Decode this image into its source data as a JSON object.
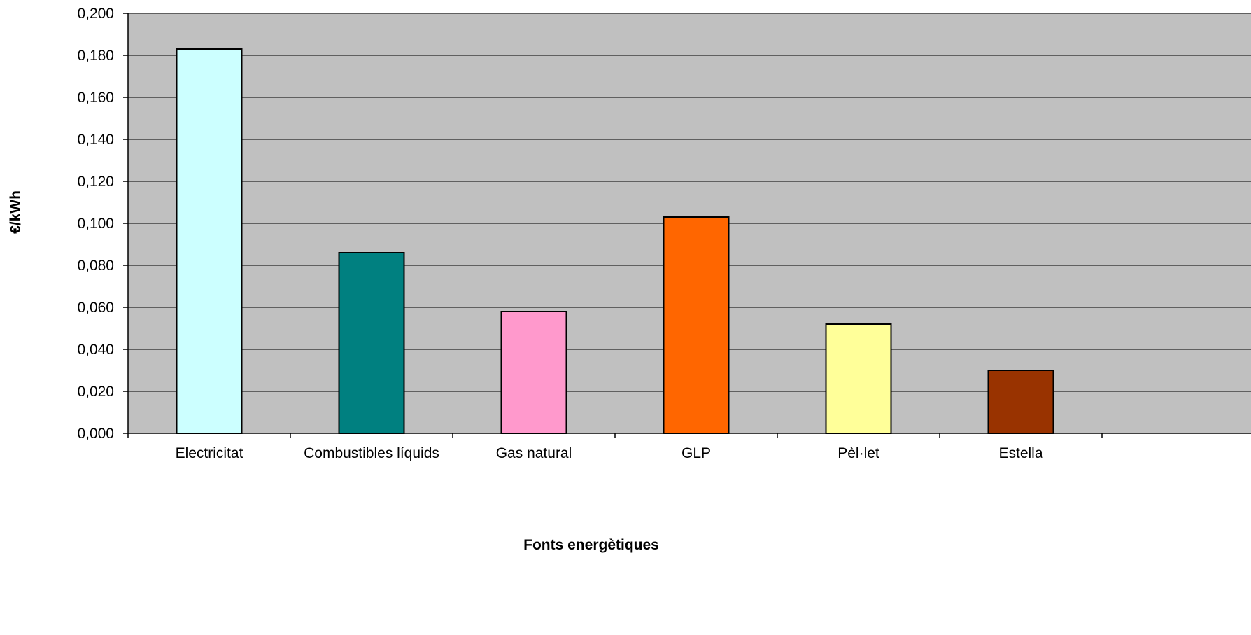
{
  "chart_data": {
    "type": "bar",
    "title": "",
    "xlabel": "Fonts energètiques",
    "ylabel": "€/kWh",
    "categories": [
      "Electricitat",
      "Combustibles líquids",
      "Gas natural",
      "GLP",
      "Pèl·let",
      "Estella"
    ],
    "values": [
      0.183,
      0.086,
      0.058,
      0.103,
      0.052,
      0.03
    ],
    "bar_colors": [
      "#CCFFFF",
      "#008080",
      "#FF99CC",
      "#FF6600",
      "#FFFF99",
      "#993300"
    ],
    "ylim": [
      0,
      0.2
    ],
    "yticks": [
      "0,000",
      "0,020",
      "0,040",
      "0,060",
      "0,080",
      "0,100",
      "0,120",
      "0,140",
      "0,160",
      "0,180",
      "0,200"
    ],
    "plot_background": "#C0C0C0",
    "grid": true,
    "legend": "none"
  }
}
